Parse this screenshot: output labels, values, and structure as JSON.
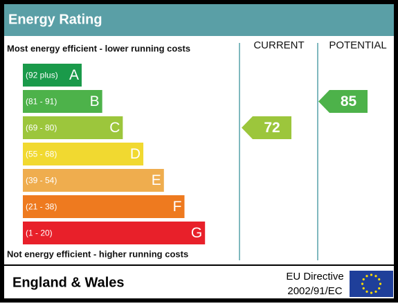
{
  "header": {
    "title": "Energy Rating"
  },
  "top_label": "Most energy efficient - lower running costs",
  "bottom_label": "Not energy efficient - higher running costs",
  "columns": [
    "CURRENT",
    "POTENTIAL"
  ],
  "bands": [
    {
      "range": "(92 plus)",
      "letter": "A",
      "color": "#1a9a4a"
    },
    {
      "range": "(81 - 91)",
      "letter": "B",
      "color": "#4db24a"
    },
    {
      "range": "(69 - 80)",
      "letter": "C",
      "color": "#9cc63c"
    },
    {
      "range": "(55 - 68)",
      "letter": "D",
      "color": "#f1d930"
    },
    {
      "range": "(39 - 54)",
      "letter": "E",
      "color": "#efad4e"
    },
    {
      "range": "(21 - 38)",
      "letter": "F",
      "color": "#ee7a1f"
    },
    {
      "range": "(1 - 20)",
      "letter": "G",
      "color": "#e8202a"
    }
  ],
  "current": {
    "value": "72",
    "band": 2
  },
  "potential": {
    "value": "85",
    "band": 1
  },
  "footer": {
    "region": "England & Wales",
    "directive": [
      "EU Directive",
      "2002/91/EC"
    ]
  }
}
